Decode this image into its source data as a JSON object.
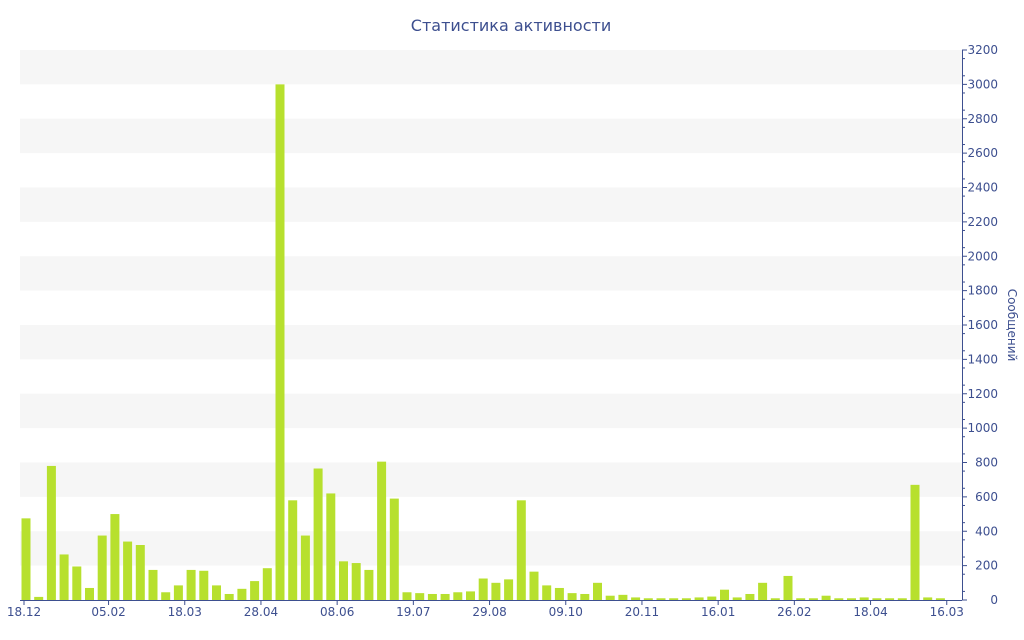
{
  "chart_data": {
    "type": "bar",
    "title": "Статистика активности",
    "xlabel": "",
    "ylabel": "Сообщений",
    "ylim": [
      0,
      3200
    ],
    "y_ticks": [
      0,
      200,
      400,
      600,
      800,
      1000,
      1200,
      1400,
      1600,
      1800,
      2000,
      2200,
      2400,
      2600,
      2800,
      3000,
      3200
    ],
    "x_tick_labels": [
      {
        "label": "18.12",
        "index": 0
      },
      {
        "label": "05.02",
        "index": 6.5
      },
      {
        "label": "18.03",
        "index": 12.5
      },
      {
        "label": "28.04",
        "index": 18.5
      },
      {
        "label": "08.06",
        "index": 24.5
      },
      {
        "label": "19.07",
        "index": 30.5
      },
      {
        "label": "29.08",
        "index": 36.5
      },
      {
        "label": "09.10",
        "index": 42.5
      },
      {
        "label": "20.11",
        "index": 48.5
      },
      {
        "label": "16.01",
        "index": 54.5
      },
      {
        "label": "26.02",
        "index": 60.5
      },
      {
        "label": "18.04",
        "index": 66.5
      },
      {
        "label": "16.03",
        "index": 72.5
      }
    ],
    "values": [
      475,
      18,
      780,
      265,
      195,
      70,
      375,
      500,
      340,
      320,
      175,
      45,
      85,
      175,
      170,
      85,
      35,
      65,
      110,
      185,
      3000,
      580,
      375,
      765,
      620,
      225,
      215,
      175,
      805,
      590,
      45,
      40,
      35,
      35,
      45,
      50,
      125,
      100,
      120,
      580,
      165,
      85,
      70,
      40,
      35,
      100,
      25,
      30,
      15,
      10,
      10,
      10,
      10,
      15,
      20,
      60,
      15,
      35,
      100,
      10,
      140,
      10,
      10,
      25,
      10,
      10,
      15,
      10,
      10,
      10,
      670,
      15,
      10
    ],
    "bar_color": "#b7e02e",
    "grid": true,
    "legend": "none"
  }
}
